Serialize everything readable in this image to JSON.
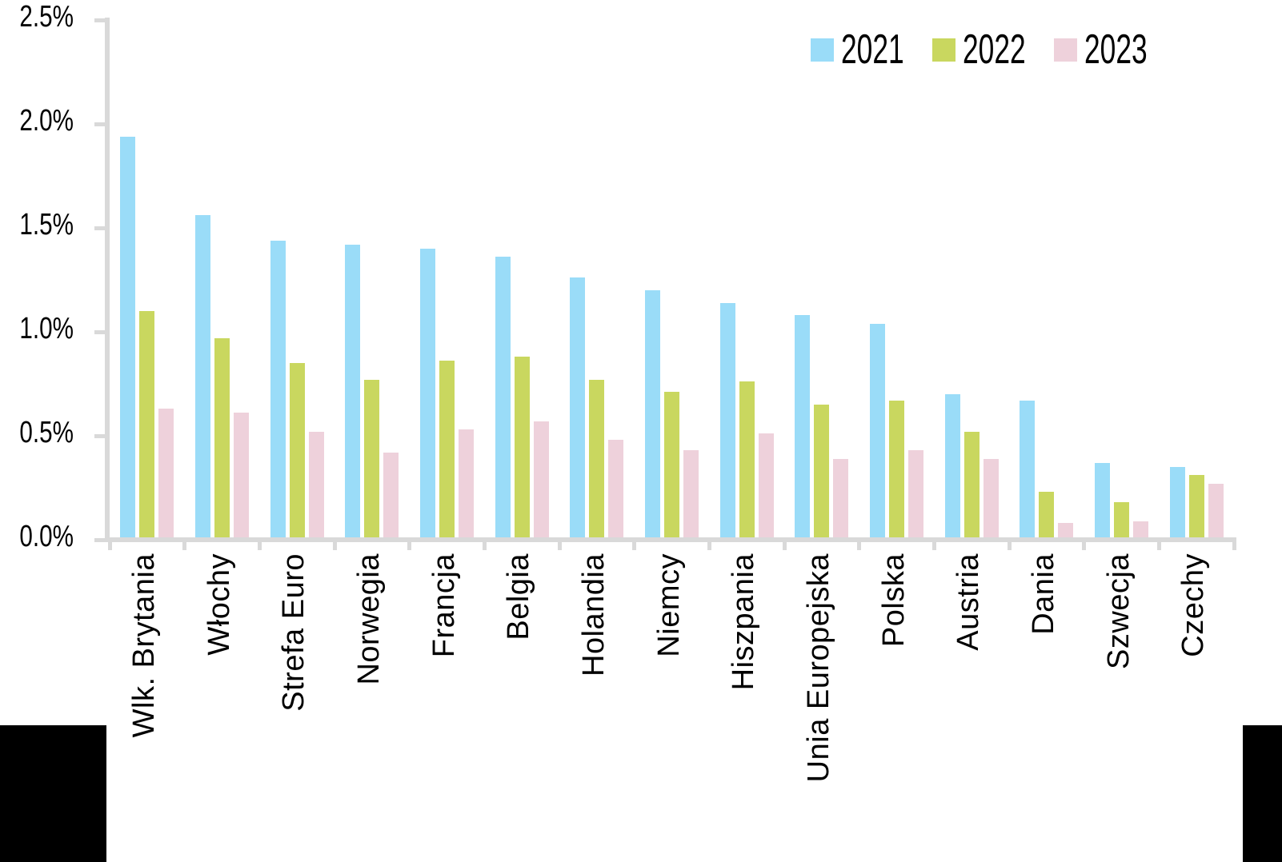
{
  "chart_data": {
    "type": "bar",
    "title": "",
    "xlabel": "",
    "ylabel": "",
    "ylim": [
      0,
      2.5
    ],
    "grid": false,
    "legend_position": "top-right",
    "y_ticks": [
      "0.0%",
      "0.5%",
      "1.0%",
      "1.5%",
      "2.0%",
      "2.5%"
    ],
    "categories": [
      "Wlk. Brytania",
      "Włochy",
      "Strefa Euro",
      "Norwegia",
      "Francja",
      "Belgia",
      "Holandia",
      "Niemcy",
      "Hiszpania",
      "Unia Europejska",
      "Polska",
      "Austria",
      "Dania",
      "Szwecja",
      "Czechy"
    ],
    "series": [
      {
        "name": "2021",
        "color": "#9adcf8",
        "values": [
          1.94,
          1.56,
          1.44,
          1.42,
          1.4,
          1.36,
          1.26,
          1.2,
          1.14,
          1.08,
          1.04,
          0.7,
          0.67,
          0.37,
          0.35
        ]
      },
      {
        "name": "2022",
        "color": "#c9d75f",
        "values": [
          1.1,
          0.97,
          0.85,
          0.77,
          0.86,
          0.88,
          0.77,
          0.71,
          0.76,
          0.65,
          0.67,
          0.52,
          0.23,
          0.18,
          0.31
        ]
      },
      {
        "name": "2023",
        "color": "#eed1db",
        "values": [
          0.63,
          0.61,
          0.52,
          0.42,
          0.53,
          0.57,
          0.48,
          0.43,
          0.51,
          0.39,
          0.43,
          0.39,
          0.08,
          0.09,
          0.27
        ]
      }
    ],
    "axis_color": "#d9d9d9",
    "text_color": "#000000"
  }
}
